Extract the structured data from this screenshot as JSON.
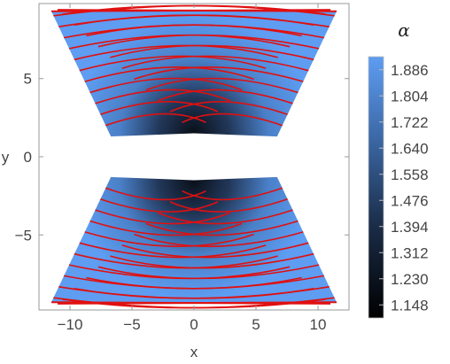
{
  "chart_data": {
    "type": "heatmap",
    "title": "",
    "xlabel": "x",
    "ylabel": "y",
    "xlim": [
      -12.5,
      12.5
    ],
    "ylim": [
      -9.8,
      9.8
    ],
    "xticks": [
      -10,
      -5,
      0,
      5,
      10
    ],
    "xtick_labels": [
      "−10",
      "−5",
      "0",
      "5",
      "10"
    ],
    "yticks": [
      -5,
      0,
      5
    ],
    "ytick_labels": [
      "−5",
      "0",
      "5"
    ],
    "colorbar": {
      "title": "α",
      "ticks": [
        1.886,
        1.804,
        1.722,
        1.64,
        1.558,
        1.476,
        1.394,
        1.312,
        1.23,
        1.148
      ],
      "tick_labels": [
        "1.886",
        "1.804",
        "1.722",
        "1.640",
        "1.558",
        "1.476",
        "1.394",
        "1.312",
        "1.230",
        "1.148"
      ],
      "range": [
        1.107,
        1.927
      ],
      "colors": {
        "low": "#000000",
        "high": "#5e9df2"
      }
    },
    "region": {
      "inner_corner": [
        0.0,
        1.5
      ],
      "outer_corner": [
        6.7,
        1.3
      ],
      "tip_corner": [
        11.5,
        9.3
      ],
      "rim_corner": [
        -11.0,
        9.4
      ],
      "mirror_symmetry": [
        "x",
        "y"
      ]
    },
    "contour_color": "#e01010",
    "contour_count": 11,
    "grid": false,
    "legend": "colorbar-right"
  }
}
